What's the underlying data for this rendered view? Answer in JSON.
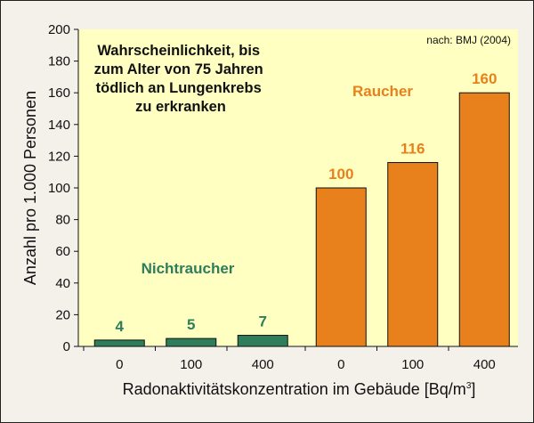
{
  "chart_data": {
    "type": "bar",
    "title": [
      "Wahrscheinlichkeit, bis",
      "zum Alter von 75 Jahren",
      "tödlich an Lungenkrebs",
      "zu erkranken"
    ],
    "source": "nach: BMJ (2004)",
    "ylabel": "Anzahl pro 1.000 Personen",
    "xlabel": "Radonaktivitätskonzentration im Gebäude [Bq/m",
    "xlabel_superscript": "3",
    "xlabel_close": "]",
    "ylim": [
      0,
      200
    ],
    "yticks": [
      "0",
      "20",
      "40",
      "60",
      "80",
      "100",
      "120",
      "140",
      "160",
      "180",
      "200"
    ],
    "grid": false,
    "groups": [
      {
        "name": "Nichtraucher",
        "color": "#2e7d5b",
        "label_color": "#2e7d5b",
        "categories": [
          "0",
          "100",
          "400"
        ],
        "values": [
          4,
          5,
          7
        ],
        "value_labels": [
          "4",
          "5",
          "7"
        ]
      },
      {
        "name": "Raucher",
        "color": "#e8801c",
        "label_color": "#e8801c",
        "categories": [
          "0",
          "100",
          "400"
        ],
        "values": [
          100,
          116,
          160
        ],
        "value_labels": [
          "100",
          "116",
          "160"
        ]
      }
    ],
    "colors": {
      "plot_background": "#ffffc2",
      "page_background": "#f4f0ea"
    }
  }
}
